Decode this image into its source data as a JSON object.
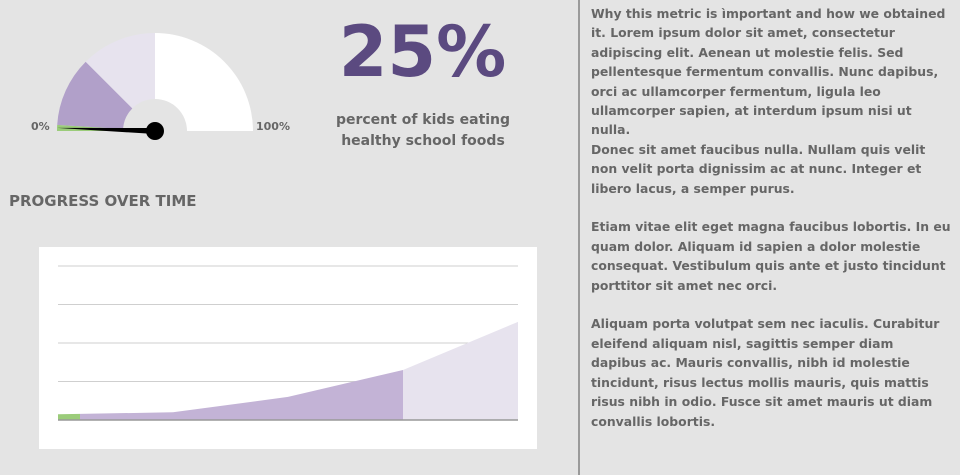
{
  "gauge": {
    "value_percent": 25,
    "min_label": "0%",
    "max_label": "100%",
    "colors": {
      "needle": "#000000",
      "low_band": "#9bcc7a",
      "filled_band": "#b1a0c9",
      "mid_band": "#e7e3ee",
      "empty_band": "#ffffff"
    }
  },
  "metric": {
    "value": "25%",
    "caption": "percent of kids eating healthy school foods",
    "color": "#5b4a80"
  },
  "progress": {
    "title": "PROGRESS OVER TIME"
  },
  "chart_data": {
    "type": "area",
    "title": "",
    "xlabel": "",
    "ylabel": "",
    "x": [
      0,
      1,
      2,
      3,
      4
    ],
    "series": [
      {
        "values": [
          3,
          4,
          12,
          26,
          51
        ]
      }
    ],
    "ylim": [
      0,
      80
    ],
    "grid": true,
    "legend": "none",
    "colors": {
      "start": "#9bcc7a",
      "achieved": "#c3b3d6",
      "future": "#e7e3ee",
      "grid": "#cfcfcf",
      "axis": "#999999"
    }
  },
  "info": {
    "paragraphs": [
      "Why this metric is ìmportant and how we obtained it. Lorem ipsum dolor sit amet, consectetur adipiscing elit. Aenean ut molestie felis. Sed pellentesque fermentum convallis. Nunc dapibus, orci ac ullamcorper fermentum, ligula leo ullamcorper sapien, at interdum ipsum nisi ut nulla.",
      "Donec sit amet faucibus nulla. Nullam quis velit non velit porta dignissim ac at nunc. Integer et libero lacus, a semper purus.",
      "Etiam vitae elit eget magna faucibus lobortis. In eu quam dolor. Aliquam id sapien a dolor molestie consequat. Vestibulum quis ante et justo tincidunt porttitor sit amet nec orci.",
      "Aliquam porta volutpat sem nec iaculis. Curabitur eleifend aliquam nisl, sagittis semper diam dapibus ac. Mauris convallis, nibh id molestie tincidunt, risus lectus mollis mauris, quis mattis risus nibh in odio. Fusce sit amet mauris ut diam convallis lobortis."
    ]
  }
}
